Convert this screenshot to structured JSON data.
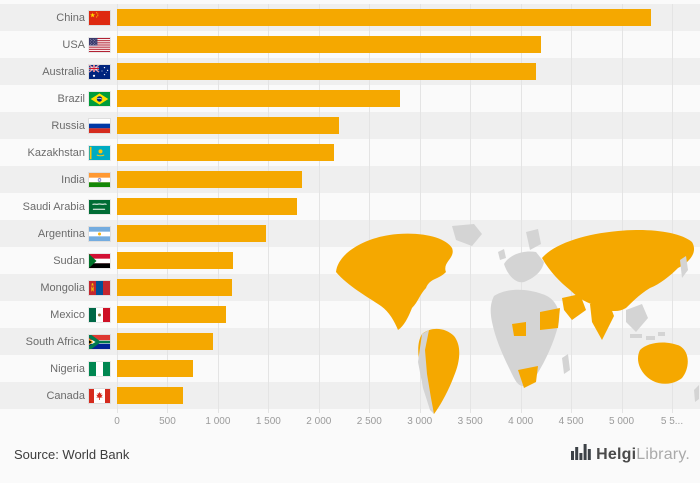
{
  "chart_data": {
    "type": "bar",
    "orientation": "horizontal",
    "categories": [
      "China",
      "USA",
      "Australia",
      "Brazil",
      "Russia",
      "Kazakhstan",
      "India",
      "Saudi Arabia",
      "Argentina",
      "Sudan",
      "Mongolia",
      "Mexico",
      "South Africa",
      "Nigeria",
      "Canada"
    ],
    "values": [
      5290,
      4200,
      4150,
      2800,
      2200,
      2150,
      1830,
      1780,
      1480,
      1150,
      1140,
      1080,
      950,
      750,
      650
    ],
    "flag_icons": [
      "flag-china-icon",
      "flag-usa-icon",
      "flag-australia-icon",
      "flag-brazil-icon",
      "flag-russia-icon",
      "flag-kazakhstan-icon",
      "flag-india-icon",
      "flag-saudi-arabia-icon",
      "flag-argentina-icon",
      "flag-sudan-icon",
      "flag-mongolia-icon",
      "flag-mexico-icon",
      "flag-south-africa-icon",
      "flag-nigeria-icon",
      "flag-canada-icon"
    ],
    "bar_color": "#F5A800",
    "row_band_color": "#efefef",
    "xlim": [
      0,
      5500
    ],
    "x_ticks": {
      "values": [
        0,
        500,
        1000,
        1500,
        2000,
        2500,
        3000,
        3500,
        4000,
        4500,
        5000,
        5500
      ],
      "labels": [
        "0",
        "500",
        "1 000",
        "1 500",
        "2 000",
        "2 500",
        "3 000",
        "3 500",
        "4 000",
        "4 500",
        "5 000",
        "5 5..."
      ]
    },
    "grid": true,
    "legend": "none",
    "map": {
      "land_color": "#d4d4d4",
      "highlight_color": "#F5A800",
      "highlighted_regions": [
        "North America",
        "South America (Brazil, Argentina)",
        "Russia & Central Asia",
        "China",
        "Mongolia",
        "India",
        "Saudi Arabia",
        "Sudan",
        "Nigeria",
        "South Africa",
        "Australia"
      ]
    }
  },
  "footer": {
    "source": "Source: World Bank",
    "logo_primary": "Helgi",
    "logo_secondary": "Library."
  }
}
